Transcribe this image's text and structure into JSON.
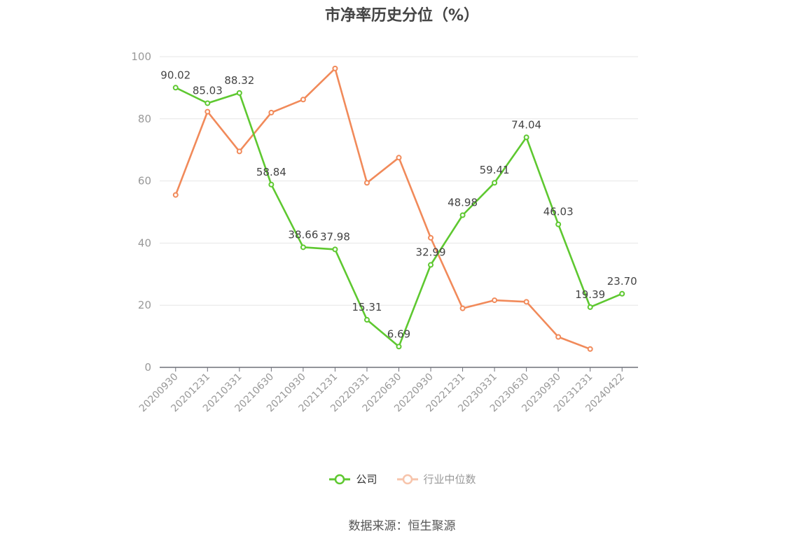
{
  "chart_data": {
    "type": "line",
    "title": "市净率历史分位（%）",
    "categories": [
      "20200930",
      "20201231",
      "20210331",
      "20210630",
      "20210930",
      "20211231",
      "20220331",
      "20220630",
      "20220930",
      "20221231",
      "20230331",
      "20230630",
      "20230930",
      "20231231",
      "20240422"
    ],
    "ylim": [
      0,
      100
    ],
    "yticks": [
      0,
      20,
      40,
      60,
      80,
      100
    ],
    "grid": true,
    "legend_position": "bottom",
    "series": [
      {
        "name": "公司",
        "color": "#5ec830",
        "values": [
          90.02,
          85.03,
          88.32,
          58.84,
          38.66,
          37.98,
          15.31,
          6.69,
          32.99,
          48.98,
          59.41,
          74.04,
          46.03,
          19.39,
          23.7
        ],
        "labels": [
          "90.02",
          "85.03",
          "88.32",
          "58.84",
          "38.66",
          "37.98",
          "15.31",
          "6.69",
          "32.99",
          "48.98",
          "59.41",
          "74.04",
          "46.03",
          "19.39",
          "23.70"
        ]
      },
      {
        "name": "行业中位数",
        "color": "#f18a5a",
        "values": [
          55.5,
          82.3,
          69.5,
          82.0,
          86.2,
          96.2,
          59.4,
          67.5,
          41.7,
          19.0,
          21.6,
          21.1,
          9.8,
          5.9,
          null
        ]
      }
    ],
    "source": "数据来源：恒生聚源"
  }
}
